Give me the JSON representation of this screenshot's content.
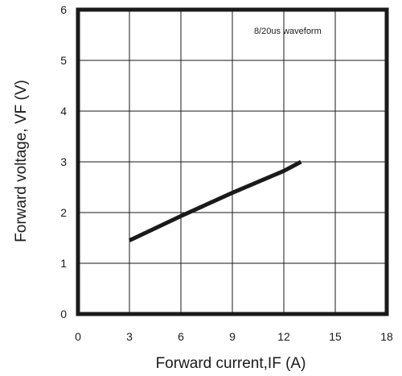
{
  "chart_data": {
    "type": "line",
    "xlabel": "Forward current,IF (A)",
    "ylabel": "Forward voltage, VF (V)",
    "xlim": [
      0,
      18
    ],
    "ylim": [
      0,
      6
    ],
    "xticks": [
      0,
      3,
      6,
      9,
      12,
      15,
      18
    ],
    "yticks": [
      0,
      1,
      2,
      3,
      4,
      5,
      6
    ],
    "grid": true,
    "annotation": "8/20us waveform",
    "series": [
      {
        "x": [
          3,
          6,
          9,
          12,
          13
        ],
        "y": [
          1.45,
          1.93,
          2.39,
          2.82,
          3.0
        ]
      }
    ]
  },
  "style": {
    "line_color": "#1a1a1a",
    "grid_color": "#1a1a1a",
    "frame_color": "#1a1a1a"
  }
}
